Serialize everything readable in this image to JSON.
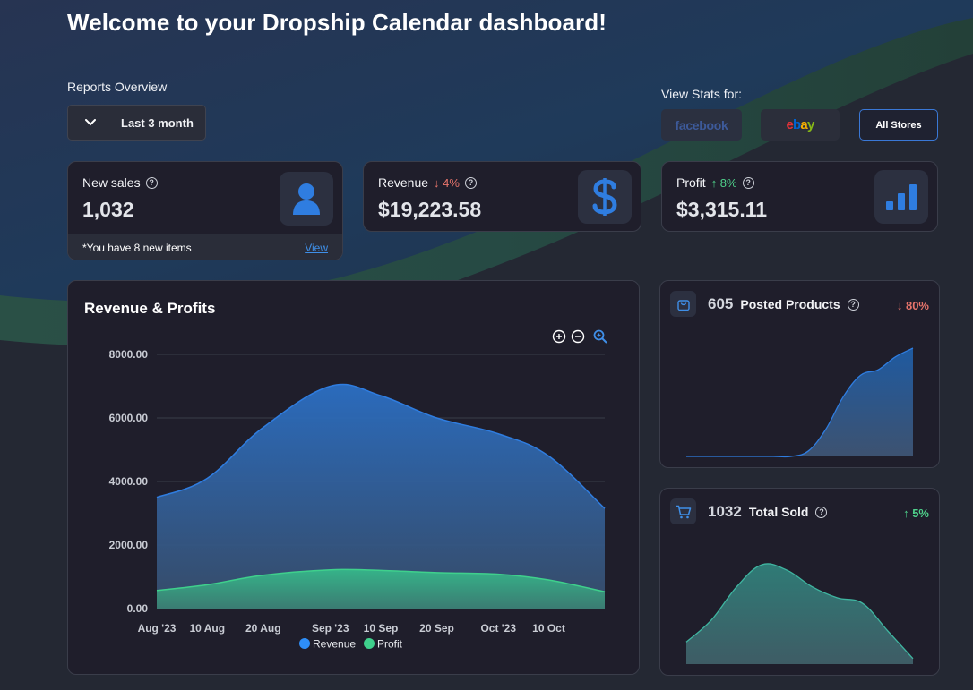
{
  "page_title": "Welcome to your Dropship Calendar dashboard!",
  "reports": {
    "label": "Reports Overview",
    "range_selected": "Last 3 month"
  },
  "view_stats": {
    "label": "View Stats for:",
    "stores": [
      "facebook",
      "ebay",
      "All Stores"
    ],
    "active_store": "All Stores"
  },
  "stats": {
    "new_sales": {
      "label": "New sales",
      "value": "1,032",
      "note": "*You have 8 new items",
      "link": "View",
      "icon": "user-icon"
    },
    "revenue": {
      "label": "Revenue",
      "change": "↓ 4%",
      "value": "$19,223.58",
      "icon": "dollar-icon"
    },
    "profit": {
      "label": "Profit",
      "change": "↑ 8%",
      "value": "$3,315.11",
      "icon": "bar-chart-icon"
    }
  },
  "chart_data": {
    "type": "area",
    "title": "Revenue & Profits",
    "x": [
      "2023-08-01",
      "2023-08-10",
      "2023-08-20",
      "2023-09-01",
      "2023-09-10",
      "2023-09-20",
      "2023-10-01",
      "2023-10-10",
      "2023-10-20"
    ],
    "x_tick_labels": [
      "Aug '23",
      "10 Aug",
      "20 Aug",
      "Sep '23",
      "10 Sep",
      "20 Sep",
      "Oct '23",
      "10 Oct"
    ],
    "y_tick_labels": [
      "0.00",
      "2000.00",
      "4000.00",
      "6000.00",
      "8000.00"
    ],
    "ylim": [
      0,
      8000
    ],
    "grid": true,
    "legend": "bottom-center",
    "series": [
      {
        "name": "Revenue",
        "color": "#2e8ef7",
        "values": [
          3500,
          4100,
          5700,
          7000,
          6700,
          6000,
          5500,
          4800,
          3150
        ]
      },
      {
        "name": "Profit",
        "color": "#3fd08c",
        "values": [
          570,
          750,
          1050,
          1220,
          1200,
          1130,
          1080,
          900,
          530
        ]
      }
    ]
  },
  "posted_products": {
    "value": "605",
    "label": "Posted Products",
    "change": "↓ 80%",
    "icon": "shopping-bag-icon",
    "sparkline": [
      0,
      0,
      0,
      0,
      0,
      0,
      0,
      5,
      25,
      55,
      75,
      80,
      92,
      100
    ]
  },
  "total_sold": {
    "value": "1032",
    "label": "Total Sold",
    "change": "↑ 5%",
    "icon": "shopping-cart-icon",
    "sparkline": [
      20,
      40,
      70,
      90,
      85,
      70,
      60,
      55,
      30,
      5
    ]
  },
  "tools": [
    "zoom-in",
    "zoom-out",
    "zoom-reset"
  ]
}
